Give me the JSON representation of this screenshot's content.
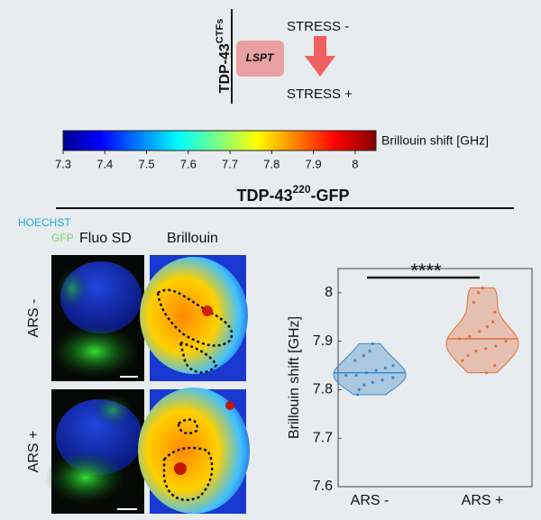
{
  "header": {
    "label": "TDP-43",
    "superscript": "CTFs",
    "box": "LSPT",
    "stress_minus": "STRESS -",
    "stress_plus": "STRESS +"
  },
  "colorbar": {
    "label": "Brillouin shift [GHz]",
    "clim": [
      7.3,
      8.05
    ],
    "ticks": [
      7.3,
      7.4,
      7.5,
      7.6,
      7.7,
      7.8,
      7.9,
      8
    ]
  },
  "panel": {
    "title": "TDP-43",
    "superscript": "220",
    "suffix": "-GFP",
    "channels": [
      "HOECHST",
      "GFP"
    ],
    "columns": [
      "Fluo SD",
      "Brillouin"
    ],
    "rows": [
      "ARS -",
      "ARS +"
    ]
  },
  "chart_data": {
    "type": "violin",
    "y_label": "Brillouin shift [GHz]",
    "categories": [
      "ARS -",
      "ARS +"
    ],
    "series": [
      {
        "color": "#3a86c8",
        "median": 7.835,
        "values": [
          7.79,
          7.8,
          7.81,
          7.815,
          7.82,
          7.825,
          7.83,
          7.83,
          7.835,
          7.84,
          7.845,
          7.85,
          7.86,
          7.87,
          7.88,
          7.895
        ]
      },
      {
        "color": "#e0703c",
        "median": 7.905,
        "values": [
          7.835,
          7.85,
          7.86,
          7.87,
          7.88,
          7.885,
          7.89,
          7.9,
          7.905,
          7.91,
          7.92,
          7.93,
          7.94,
          7.96,
          7.98,
          8.0,
          8.01
        ]
      }
    ],
    "annotation": "****",
    "ylim": [
      7.6,
      8.05
    ],
    "yticks": [
      7.6,
      7.7,
      7.8,
      7.9,
      8
    ]
  }
}
